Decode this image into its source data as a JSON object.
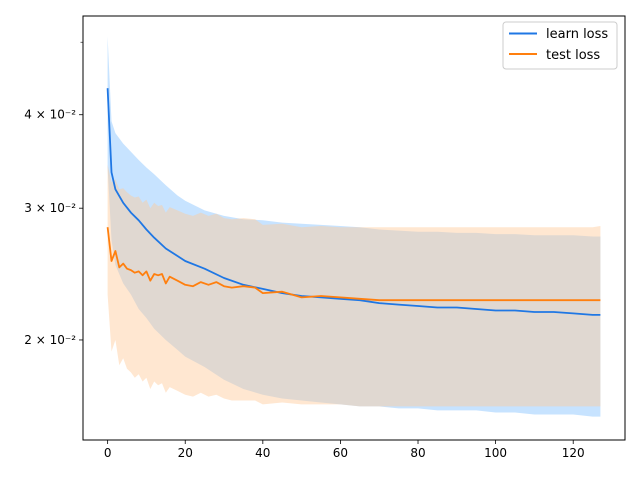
{
  "chart_data": {
    "type": "line",
    "title": "",
    "xlabel": "",
    "ylabel": "",
    "yscale": "log",
    "xlim": [
      -6.35,
      133.35
    ],
    "ylim": [
      0.0147,
      0.0542
    ],
    "x_ticks": [
      0,
      20,
      40,
      60,
      80,
      100,
      120
    ],
    "y_ticks": [
      {
        "value": 0.02,
        "label": "2 × 10⁻²"
      },
      {
        "value": 0.03,
        "label": "3 × 10⁻²"
      },
      {
        "value": 0.04,
        "label": "4 × 10⁻²"
      }
    ],
    "legend_position": "top-right",
    "series": [
      {
        "name": "learn loss",
        "color": "#1f77e4",
        "band_color": "#99ccff",
        "x": [
          0,
          1,
          2,
          4,
          6,
          8,
          10,
          12,
          15,
          18,
          20,
          25,
          30,
          35,
          40,
          45,
          50,
          55,
          60,
          65,
          70,
          75,
          80,
          85,
          90,
          95,
          100,
          105,
          110,
          115,
          120,
          125,
          127
        ],
        "mean": [
          0.0434,
          0.0335,
          0.0318,
          0.0305,
          0.0296,
          0.0289,
          0.0281,
          0.0274,
          0.0265,
          0.0259,
          0.0255,
          0.0249,
          0.0242,
          0.0237,
          0.0234,
          0.0231,
          0.0229,
          0.0228,
          0.0227,
          0.0226,
          0.0224,
          0.0223,
          0.0222,
          0.0221,
          0.0221,
          0.022,
          0.0219,
          0.0219,
          0.0218,
          0.0218,
          0.0217,
          0.0216,
          0.0216
        ],
        "upper": [
          0.0509,
          0.0392,
          0.0378,
          0.0366,
          0.0357,
          0.0348,
          0.034,
          0.0333,
          0.0322,
          0.0312,
          0.0307,
          0.0298,
          0.0293,
          0.029,
          0.0289,
          0.0287,
          0.0286,
          0.0285,
          0.0284,
          0.0283,
          0.0281,
          0.028,
          0.0279,
          0.0279,
          0.0278,
          0.0278,
          0.0277,
          0.0277,
          0.0276,
          0.0276,
          0.0276,
          0.0275,
          0.0275
        ],
        "lower": [
          0.034,
          0.0272,
          0.0252,
          0.0238,
          0.023,
          0.022,
          0.0214,
          0.0207,
          0.02,
          0.0194,
          0.019,
          0.0184,
          0.0177,
          0.0172,
          0.0169,
          0.0167,
          0.0166,
          0.0165,
          0.0164,
          0.0163,
          0.0163,
          0.0162,
          0.0162,
          0.0161,
          0.0161,
          0.0161,
          0.016,
          0.016,
          0.0159,
          0.0159,
          0.0159,
          0.0158,
          0.0158
        ]
      },
      {
        "name": "test loss",
        "color": "#ff7f0e",
        "band_color": "#ffc999",
        "x": [
          0,
          1,
          2,
          3,
          4,
          5,
          6,
          7,
          8,
          9,
          10,
          11,
          12,
          13,
          14,
          15,
          16,
          18,
          20,
          22,
          24,
          26,
          28,
          30,
          32,
          35,
          38,
          40,
          45,
          50,
          55,
          60,
          65,
          70,
          75,
          80,
          85,
          90,
          95,
          100,
          105,
          110,
          115,
          120,
          125,
          127
        ],
        "mean": [
          0.0283,
          0.0255,
          0.0263,
          0.025,
          0.0253,
          0.0249,
          0.0248,
          0.0246,
          0.0247,
          0.0244,
          0.0247,
          0.024,
          0.0245,
          0.0244,
          0.0245,
          0.0238,
          0.0243,
          0.024,
          0.0237,
          0.0236,
          0.0239,
          0.0237,
          0.0239,
          0.0236,
          0.0235,
          0.0236,
          0.0235,
          0.0231,
          0.0232,
          0.0228,
          0.0229,
          0.0228,
          0.0227,
          0.0226,
          0.0226,
          0.0226,
          0.0226,
          0.0226,
          0.0226,
          0.0226,
          0.0226,
          0.0226,
          0.0226,
          0.0226,
          0.0226,
          0.0226
        ],
        "upper": [
          0.0343,
          0.0325,
          0.0328,
          0.0318,
          0.0319,
          0.0315,
          0.0312,
          0.031,
          0.0311,
          0.0305,
          0.0308,
          0.03,
          0.0305,
          0.0302,
          0.0303,
          0.0296,
          0.0301,
          0.0298,
          0.0295,
          0.0293,
          0.0296,
          0.0293,
          0.0295,
          0.0291,
          0.029,
          0.0291,
          0.029,
          0.0285,
          0.0286,
          0.0283,
          0.0284,
          0.0283,
          0.0283,
          0.0283,
          0.0283,
          0.0283,
          0.0283,
          0.0283,
          0.0283,
          0.0283,
          0.0283,
          0.0283,
          0.0283,
          0.0283,
          0.0283,
          0.0284
        ],
        "lower": [
          0.023,
          0.0193,
          0.02,
          0.0185,
          0.0189,
          0.0183,
          0.0181,
          0.0178,
          0.018,
          0.0176,
          0.0178,
          0.0172,
          0.0176,
          0.0174,
          0.0175,
          0.017,
          0.0173,
          0.0171,
          0.0169,
          0.0168,
          0.017,
          0.0168,
          0.0169,
          0.0167,
          0.0166,
          0.0166,
          0.0166,
          0.0164,
          0.0165,
          0.0164,
          0.0164,
          0.0164,
          0.0163,
          0.0163,
          0.0163,
          0.0163,
          0.0163,
          0.0163,
          0.0163,
          0.0163,
          0.0163,
          0.0163,
          0.0163,
          0.0163,
          0.0163,
          0.0163
        ]
      }
    ]
  }
}
